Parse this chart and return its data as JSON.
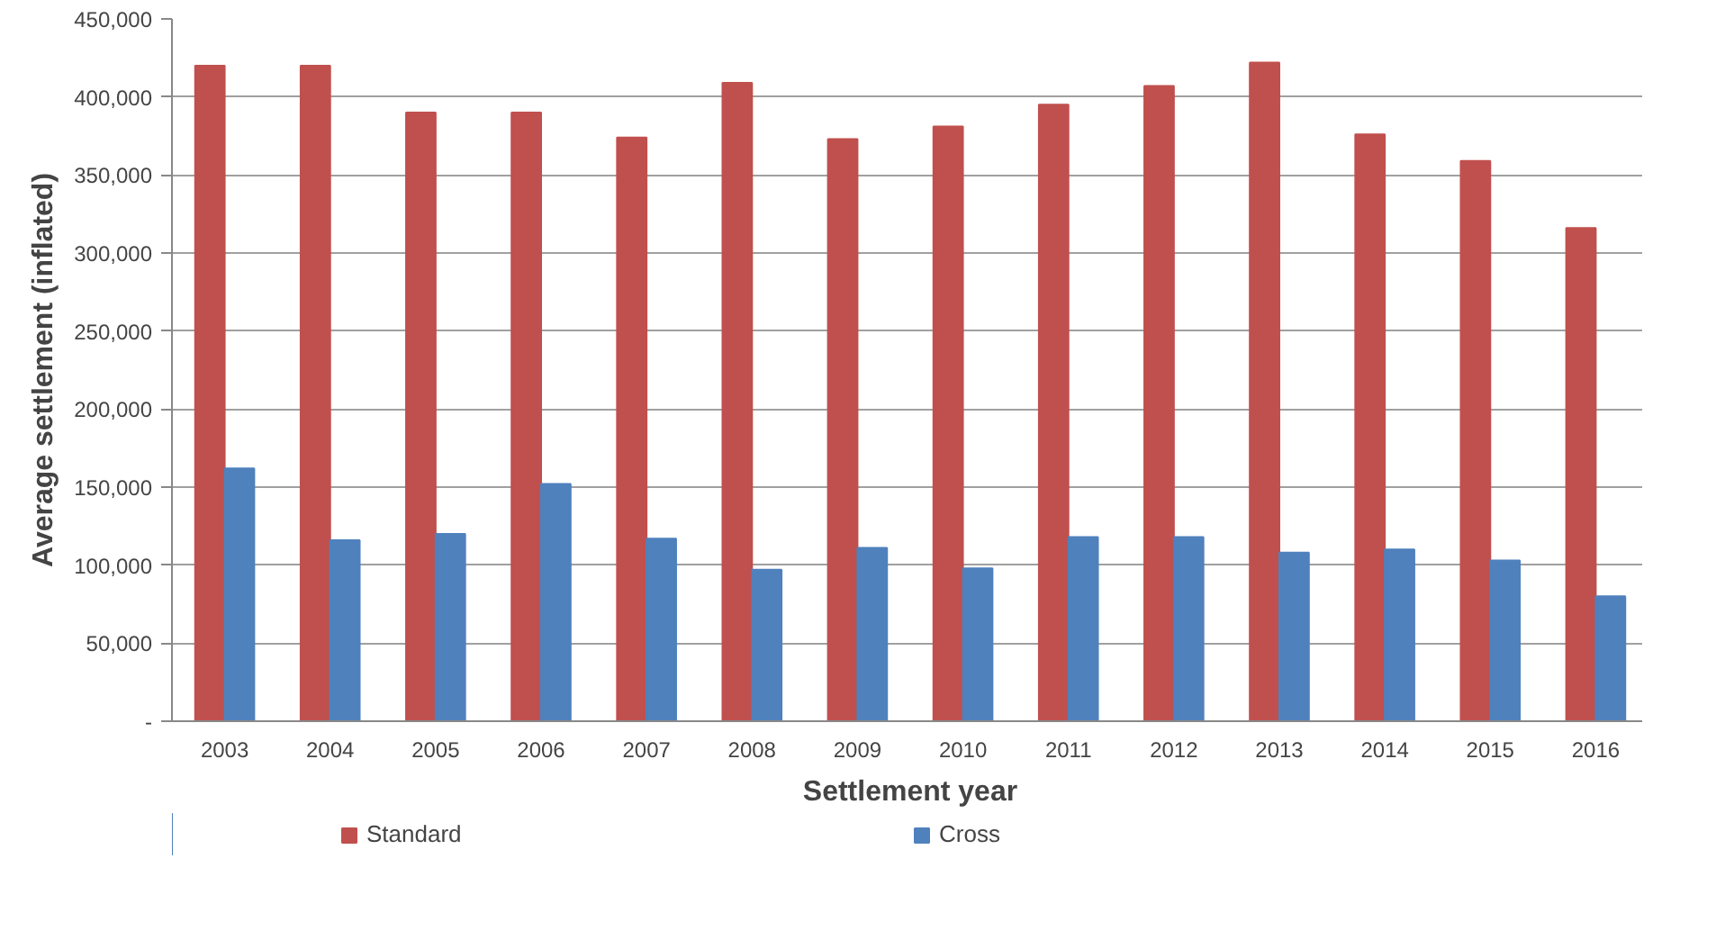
{
  "chart_data": {
    "type": "bar",
    "xlabel": "Settlement year",
    "ylabel": "Average settlement (inflated)",
    "categories": [
      "2003",
      "2004",
      "2005",
      "2006",
      "2007",
      "2008",
      "2009",
      "2010",
      "2011",
      "2012",
      "2013",
      "2014",
      "2015",
      "2016"
    ],
    "series": [
      {
        "name": "Standard",
        "color": "#c0504d",
        "values": [
          420000,
          420000,
          390000,
          390000,
          374000,
          409000,
          373000,
          381000,
          395000,
          407000,
          422000,
          376000,
          359000,
          316000
        ]
      },
      {
        "name": "Cross",
        "color": "#4f81bd",
        "values": [
          162000,
          116000,
          120000,
          152000,
          117000,
          97000,
          111000,
          98000,
          118000,
          118000,
          108000,
          110000,
          103000,
          80000
        ]
      }
    ],
    "ylim": [
      0,
      450000
    ],
    "yticks": [
      {
        "value": 0,
        "label": "-"
      },
      {
        "value": 50000,
        "label": "50,000"
      },
      {
        "value": 100000,
        "label": "100,000"
      },
      {
        "value": 150000,
        "label": "150,000"
      },
      {
        "value": 200000,
        "label": "200,000"
      },
      {
        "value": 250000,
        "label": "250,000"
      },
      {
        "value": 300000,
        "label": "300,000"
      },
      {
        "value": 350000,
        "label": "350,000"
      },
      {
        "value": 400000,
        "label": "400,000"
      },
      {
        "value": 450000,
        "label": "450,000"
      }
    ],
    "grid": "y",
    "legend": "bottom"
  }
}
